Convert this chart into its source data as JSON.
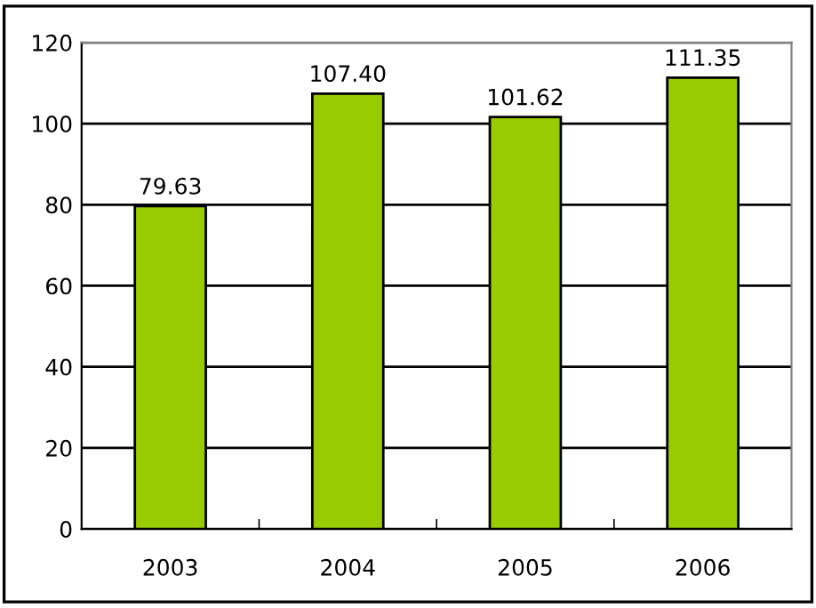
{
  "chart_data": {
    "type": "bar",
    "categories": [
      "2003",
      "2004",
      "2005",
      "2006"
    ],
    "values": [
      79.63,
      107.4,
      101.62,
      111.35
    ],
    "value_labels": [
      "79.63",
      "107.40",
      "101.62",
      "111.35"
    ],
    "color": "#99cc00",
    "ylim": [
      0,
      120
    ],
    "yticks": [
      0,
      20,
      40,
      60,
      80,
      100,
      120
    ],
    "grid": "y",
    "legend": false
  }
}
